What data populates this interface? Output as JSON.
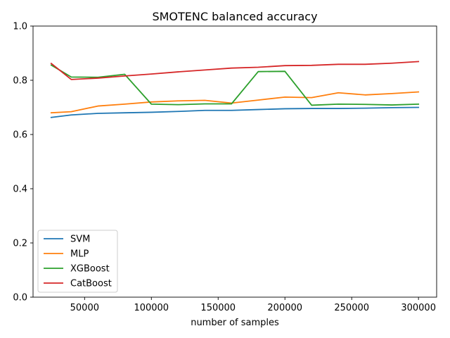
{
  "chart_data": {
    "type": "line",
    "title": "SMOTENC balanced accuracy",
    "xlabel": "number of samples",
    "ylabel": "",
    "xlim": [
      11400,
      313600
    ],
    "ylim": [
      0.0,
      1.0
    ],
    "xticks": [
      50000,
      100000,
      150000,
      200000,
      250000,
      300000
    ],
    "yticks": [
      0.0,
      0.2,
      0.4,
      0.6,
      0.8,
      1.0
    ],
    "xtick_labels": [
      "50000",
      "100000",
      "150000",
      "200000",
      "250000",
      "300000"
    ],
    "ytick_labels": [
      "0.0",
      "0.2",
      "0.4",
      "0.6",
      "0.8",
      "1.0"
    ],
    "grid": false,
    "legend_position": "lower-left",
    "x": [
      25000,
      40000,
      60000,
      80000,
      100000,
      120000,
      140000,
      160000,
      180000,
      200000,
      220000,
      240000,
      260000,
      280000,
      300000
    ],
    "series": [
      {
        "name": "SVM",
        "color": "#1f77b4",
        "values": [
          0.663,
          0.672,
          0.678,
          0.68,
          0.682,
          0.685,
          0.689,
          0.689,
          0.692,
          0.695,
          0.696,
          0.696,
          0.697,
          0.699,
          0.7
        ]
      },
      {
        "name": "MLP",
        "color": "#ff7f0e",
        "values": [
          0.68,
          0.684,
          0.705,
          0.712,
          0.72,
          0.724,
          0.726,
          0.716,
          0.727,
          0.738,
          0.736,
          0.754,
          0.746,
          0.751,
          0.757
        ]
      },
      {
        "name": "XGBoost",
        "color": "#2ca02c",
        "values": [
          0.856,
          0.812,
          0.811,
          0.822,
          0.712,
          0.71,
          0.713,
          0.713,
          0.832,
          0.833,
          0.708,
          0.712,
          0.711,
          0.709,
          0.712
        ]
      },
      {
        "name": "CatBoost",
        "color": "#d62728",
        "values": [
          0.862,
          0.803,
          0.808,
          0.816,
          0.823,
          0.831,
          0.838,
          0.845,
          0.848,
          0.854,
          0.855,
          0.859,
          0.859,
          0.863,
          0.869
        ]
      }
    ]
  }
}
